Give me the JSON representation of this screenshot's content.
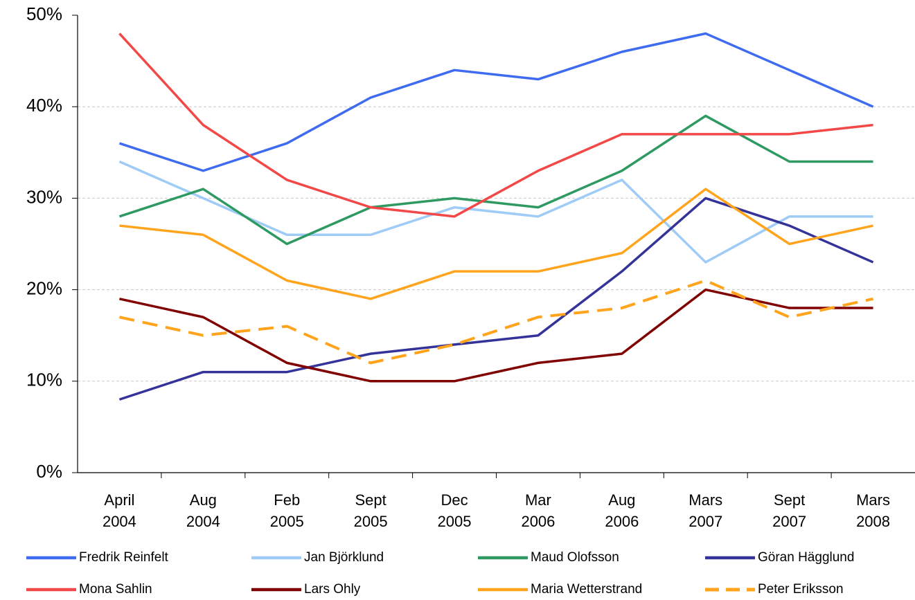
{
  "chart_data": {
    "type": "line",
    "categories": [
      "April 2004",
      "Aug 2004",
      "Feb 2005",
      "Sept 2005",
      "Dec 2005",
      "Mar 2006",
      "Aug 2006",
      "Mars 2007",
      "Sept 2007",
      "Mars 2008"
    ],
    "series": [
      {
        "name": "Fredrik Reinfelt",
        "color": "#3f6bf0",
        "values": [
          36,
          33,
          36,
          41,
          44,
          43,
          46,
          48,
          44,
          40
        ]
      },
      {
        "name": "Jan Björklund",
        "color": "#9fcbf7",
        "values": [
          34,
          30,
          26,
          26,
          29,
          28,
          32,
          23,
          28,
          28
        ]
      },
      {
        "name": "Maud Olofsson",
        "color": "#2e9a62",
        "values": [
          28,
          31,
          25,
          29,
          30,
          29,
          33,
          39,
          34,
          34
        ]
      },
      {
        "name": "Göran Hägglund",
        "color": "#33339a",
        "values": [
          8,
          11,
          11,
          13,
          14,
          15,
          22,
          30,
          27,
          23
        ]
      },
      {
        "name": "Mona Sahlin",
        "color": "#f24848",
        "values": [
          48,
          38,
          32,
          29,
          28,
          33,
          37,
          37,
          37,
          38
        ]
      },
      {
        "name": "Lars Ohly",
        "color": "#800000",
        "values": [
          19,
          17,
          12,
          10,
          10,
          12,
          13,
          20,
          18,
          18
        ]
      },
      {
        "name": "Maria Wetterstrand",
        "color": "#ffa41c",
        "values": [
          27,
          26,
          21,
          19,
          22,
          22,
          24,
          31,
          25,
          27
        ]
      },
      {
        "name": "Peter Eriksson",
        "color": "#ffa41c",
        "dashed": true,
        "values": [
          17,
          15,
          16,
          12,
          14,
          17,
          18,
          21,
          17,
          19
        ]
      }
    ],
    "ylim": [
      0,
      50
    ],
    "yticks": [
      {
        "value": 0,
        "label": "0%"
      },
      {
        "value": 10,
        "label": "10%"
      },
      {
        "value": 20,
        "label": "20%"
      },
      {
        "value": 30,
        "label": "30%"
      },
      {
        "value": 40,
        "label": "40%"
      },
      {
        "value": 50,
        "label": "50%"
      }
    ],
    "grid": true
  }
}
